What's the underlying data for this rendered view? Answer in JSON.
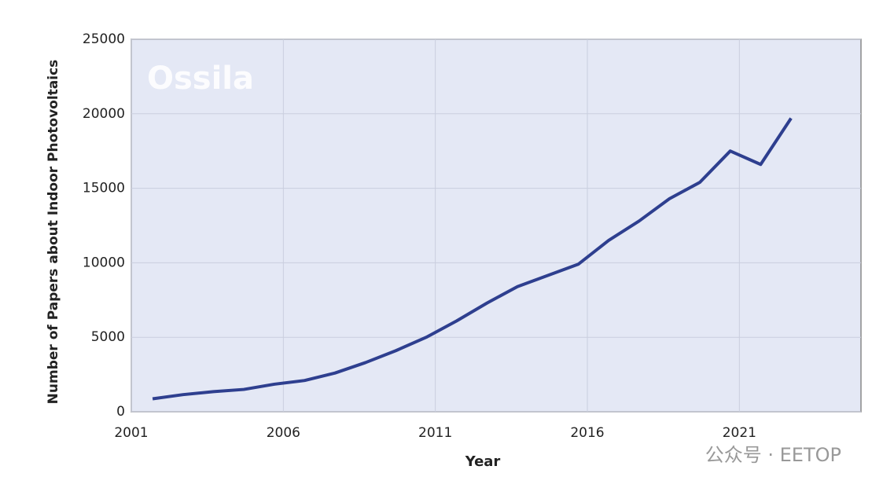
{
  "chart_data": {
    "type": "line",
    "x_label": "Year",
    "y_label": "Number of Papers about Indoor Photovoltaics",
    "watermark": "Ossila",
    "footer": "公众号 · EETOP",
    "x": [
      2001.7,
      2002.7,
      2003.7,
      2004.7,
      2005.7,
      2006.7,
      2007.7,
      2008.7,
      2009.7,
      2010.7,
      2011.7,
      2012.7,
      2013.7,
      2014.7,
      2015.7,
      2016.7,
      2017.7,
      2018.7,
      2019.7,
      2020.7,
      2021.7,
      2022.7
    ],
    "series": [
      {
        "color": "#2e3f8f",
        "values": [
          870,
          1150,
          1350,
          1500,
          1850,
          2100,
          2600,
          3300,
          4100,
          5000,
          6100,
          7300,
          8400,
          9150,
          9900,
          11500,
          12800,
          14300,
          15400,
          17500,
          16600,
          19700
        ]
      }
    ],
    "xlim": [
      2001,
      2025
    ],
    "xticks": [
      2001,
      2006,
      2011,
      2016,
      2021
    ],
    "ylim": [
      0,
      25000
    ],
    "yticks": [
      0,
      5000,
      10000,
      15000,
      20000,
      25000
    ],
    "grid": true,
    "plot_background": "#e4e8f5"
  }
}
